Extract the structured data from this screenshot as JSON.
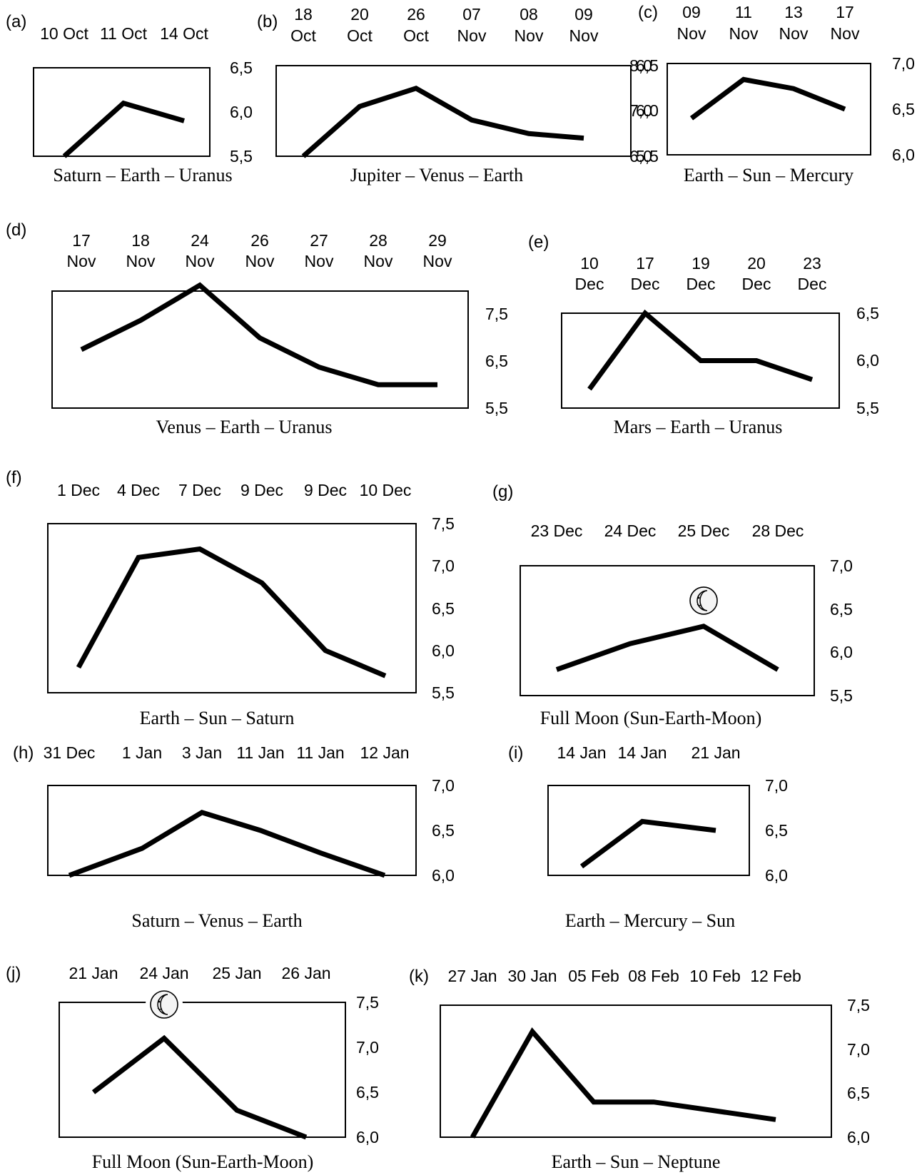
{
  "chart_data": [
    {
      "id": "a",
      "type": "line",
      "panel_label": "(a)",
      "date_labels": [
        "10 Oct",
        "11 Oct",
        "14 Oct"
      ],
      "values": [
        5.5,
        6.1,
        5.9
      ],
      "ylim": [
        5.5,
        6.5
      ],
      "yticks": [
        "6,5",
        "6,0",
        "5,5"
      ],
      "caption": "Saturn – Earth – Uranus"
    },
    {
      "id": "b",
      "type": "line",
      "panel_label": "(b)",
      "date_labels": [
        "18 Oct",
        "20 Oct",
        "26 Oct",
        "07 Nov",
        "08 Nov",
        "09 Nov"
      ],
      "values": [
        5.5,
        6.05,
        6.25,
        5.9,
        5.75,
        5.7
      ],
      "ylim": [
        5.5,
        6.5
      ],
      "yticks": [
        "6,5",
        "6,0",
        "5,5"
      ],
      "caption": "Jupiter – Venus – Earth"
    },
    {
      "id": "c",
      "type": "line",
      "panel_label": "(c)",
      "date_labels": [
        "09 Nov",
        "11 Nov",
        "13 Nov",
        "17 Nov"
      ],
      "values": [
        6.8,
        7.65,
        7.45,
        7.0
      ],
      "ylim": [
        6.0,
        8.0
      ],
      "yticks": [
        "8,0",
        "7,0",
        "6,0"
      ],
      "yticks_right": [
        "7,0",
        "6,5",
        "6,0"
      ],
      "caption": "Earth – Sun – Mercury"
    },
    {
      "id": "d",
      "type": "line",
      "panel_label": "(d)",
      "date_labels": [
        "17 Nov",
        "18 Nov",
        "24 Nov",
        "26 Nov",
        "27 Nov",
        "28 Nov",
        "29 Nov"
      ],
      "values": [
        6.5,
        7.0,
        7.6,
        6.7,
        6.2,
        5.9,
        5.9
      ],
      "ylim": [
        5.5,
        7.5
      ],
      "yticks": [
        "7,5",
        "6,5",
        "5,5"
      ],
      "caption": "Venus – Earth – Uranus"
    },
    {
      "id": "e",
      "type": "line",
      "panel_label": "(e)",
      "date_labels": [
        "10 Dec",
        "17 Dec",
        "19 Dec",
        "20 Dec",
        "23 Dec"
      ],
      "values": [
        5.7,
        6.5,
        6.0,
        6.0,
        5.8
      ],
      "ylim": [
        5.5,
        6.5
      ],
      "yticks": [
        "6,5",
        "6,0",
        "5,5"
      ],
      "caption": "Mars – Earth – Uranus"
    },
    {
      "id": "f",
      "type": "line",
      "panel_label": "(f)",
      "date_labels": [
        "1 Dec",
        "4 Dec",
        "7 Dec",
        "9 Dec",
        "9 Dec",
        "10 Dec"
      ],
      "values": [
        5.8,
        7.1,
        7.2,
        6.8,
        6.0,
        5.7
      ],
      "ylim": [
        5.5,
        7.5
      ],
      "yticks": [
        "7,5",
        "7,0",
        "6,5",
        "6,0",
        "5,5"
      ],
      "caption": "Earth – Sun – Saturn"
    },
    {
      "id": "g",
      "type": "line",
      "panel_label": "(g)",
      "date_labels": [
        "23 Dec",
        "24 Dec",
        "25 Dec",
        "28 Dec"
      ],
      "values": [
        5.8,
        6.1,
        6.3,
        5.8
      ],
      "ylim": [
        5.5,
        7.0
      ],
      "yticks": [
        "7,0",
        "6,5",
        "6,0",
        "5,5"
      ],
      "moon_icon": "full-moon-icon",
      "moon_at": 2,
      "caption": "Full Moon (Sun-Earth-Moon)"
    },
    {
      "id": "h",
      "type": "line",
      "panel_label": "(h)",
      "date_labels": [
        "31 Dec",
        "1 Jan",
        "3 Jan",
        "11 Jan",
        "11 Jan",
        "12 Jan"
      ],
      "values": [
        6.0,
        6.3,
        6.7,
        6.5,
        6.25,
        6.0
      ],
      "ylim": [
        6.0,
        7.0
      ],
      "yticks": [
        "7,0",
        "6,5",
        "6,0"
      ],
      "caption": "Saturn – Venus – Earth"
    },
    {
      "id": "i",
      "type": "line",
      "panel_label": "(i)",
      "date_labels": [
        "14 Jan",
        "14 Jan",
        "21 Jan"
      ],
      "values": [
        6.1,
        6.6,
        6.5
      ],
      "ylim": [
        6.0,
        7.0
      ],
      "yticks": [
        "7,0",
        "6,5",
        "6,0"
      ],
      "caption": "Earth – Mercury – Sun"
    },
    {
      "id": "j",
      "type": "line",
      "panel_label": "(j)",
      "date_labels": [
        "21 Jan",
        "24 Jan",
        "25 Jan",
        "26 Jan"
      ],
      "values": [
        6.5,
        7.1,
        6.3,
        6.0
      ],
      "ylim": [
        6.0,
        7.5
      ],
      "yticks": [
        "7,5",
        "7,0",
        "6,5",
        "6,0"
      ],
      "moon_icon": "full-moon-icon",
      "moon_at": 1,
      "caption": "Full Moon (Sun-Earth-Moon)"
    },
    {
      "id": "k",
      "type": "line",
      "panel_label": "(k)",
      "date_labels": [
        "27 Jan",
        "30 Jan",
        "05 Feb",
        "08 Feb",
        "10 Feb",
        "12 Feb"
      ],
      "values": [
        6.0,
        7.2,
        6.4,
        6.4,
        6.3,
        6.2
      ],
      "ylim": [
        6.0,
        7.5
      ],
      "yticks": [
        "7,5",
        "7,0",
        "6,5",
        "6,0"
      ],
      "caption": "Earth – Sun – Neptune"
    }
  ]
}
